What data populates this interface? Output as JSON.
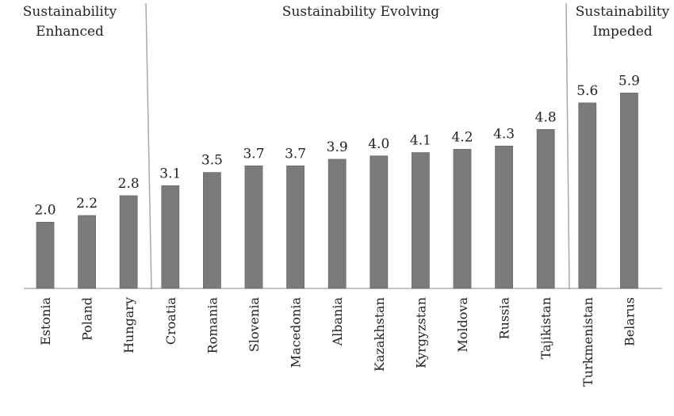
{
  "chart_data": {
    "type": "bar",
    "title": "",
    "xlabel": "",
    "ylabel": "",
    "ylim": [
      0,
      7
    ],
    "grid": false,
    "categories": [
      "Estonia",
      "Poland",
      "Hungary",
      "Croatia",
      "Romania",
      "Slovenia",
      "Macedonia",
      "Albania",
      "Kazakhstan",
      "Kyrgyzstan",
      "Moldova",
      "Russia",
      "Tajikistan",
      "Turkmenistan",
      "Belarus"
    ],
    "values": [
      2.0,
      2.2,
      2.8,
      3.1,
      3.5,
      3.7,
      3.7,
      3.9,
      4.0,
      4.1,
      4.2,
      4.3,
      4.8,
      5.6,
      5.9
    ],
    "data_labels": [
      "2.0",
      "2.2",
      "2.8",
      "3.1",
      "3.5",
      "3.7",
      "3.7",
      "3.9",
      "4.0",
      "4.1",
      "4.2",
      "4.3",
      "4.8",
      "5.6",
      "5.9"
    ],
    "bar_color": "#7b7b7b",
    "zones": [
      {
        "line1": "Sustainability",
        "line2": "Enhanced"
      },
      {
        "line1": "Sustainability Evolving",
        "line2": ""
      },
      {
        "line1": "Sustainability",
        "line2": "Impeded"
      }
    ]
  }
}
